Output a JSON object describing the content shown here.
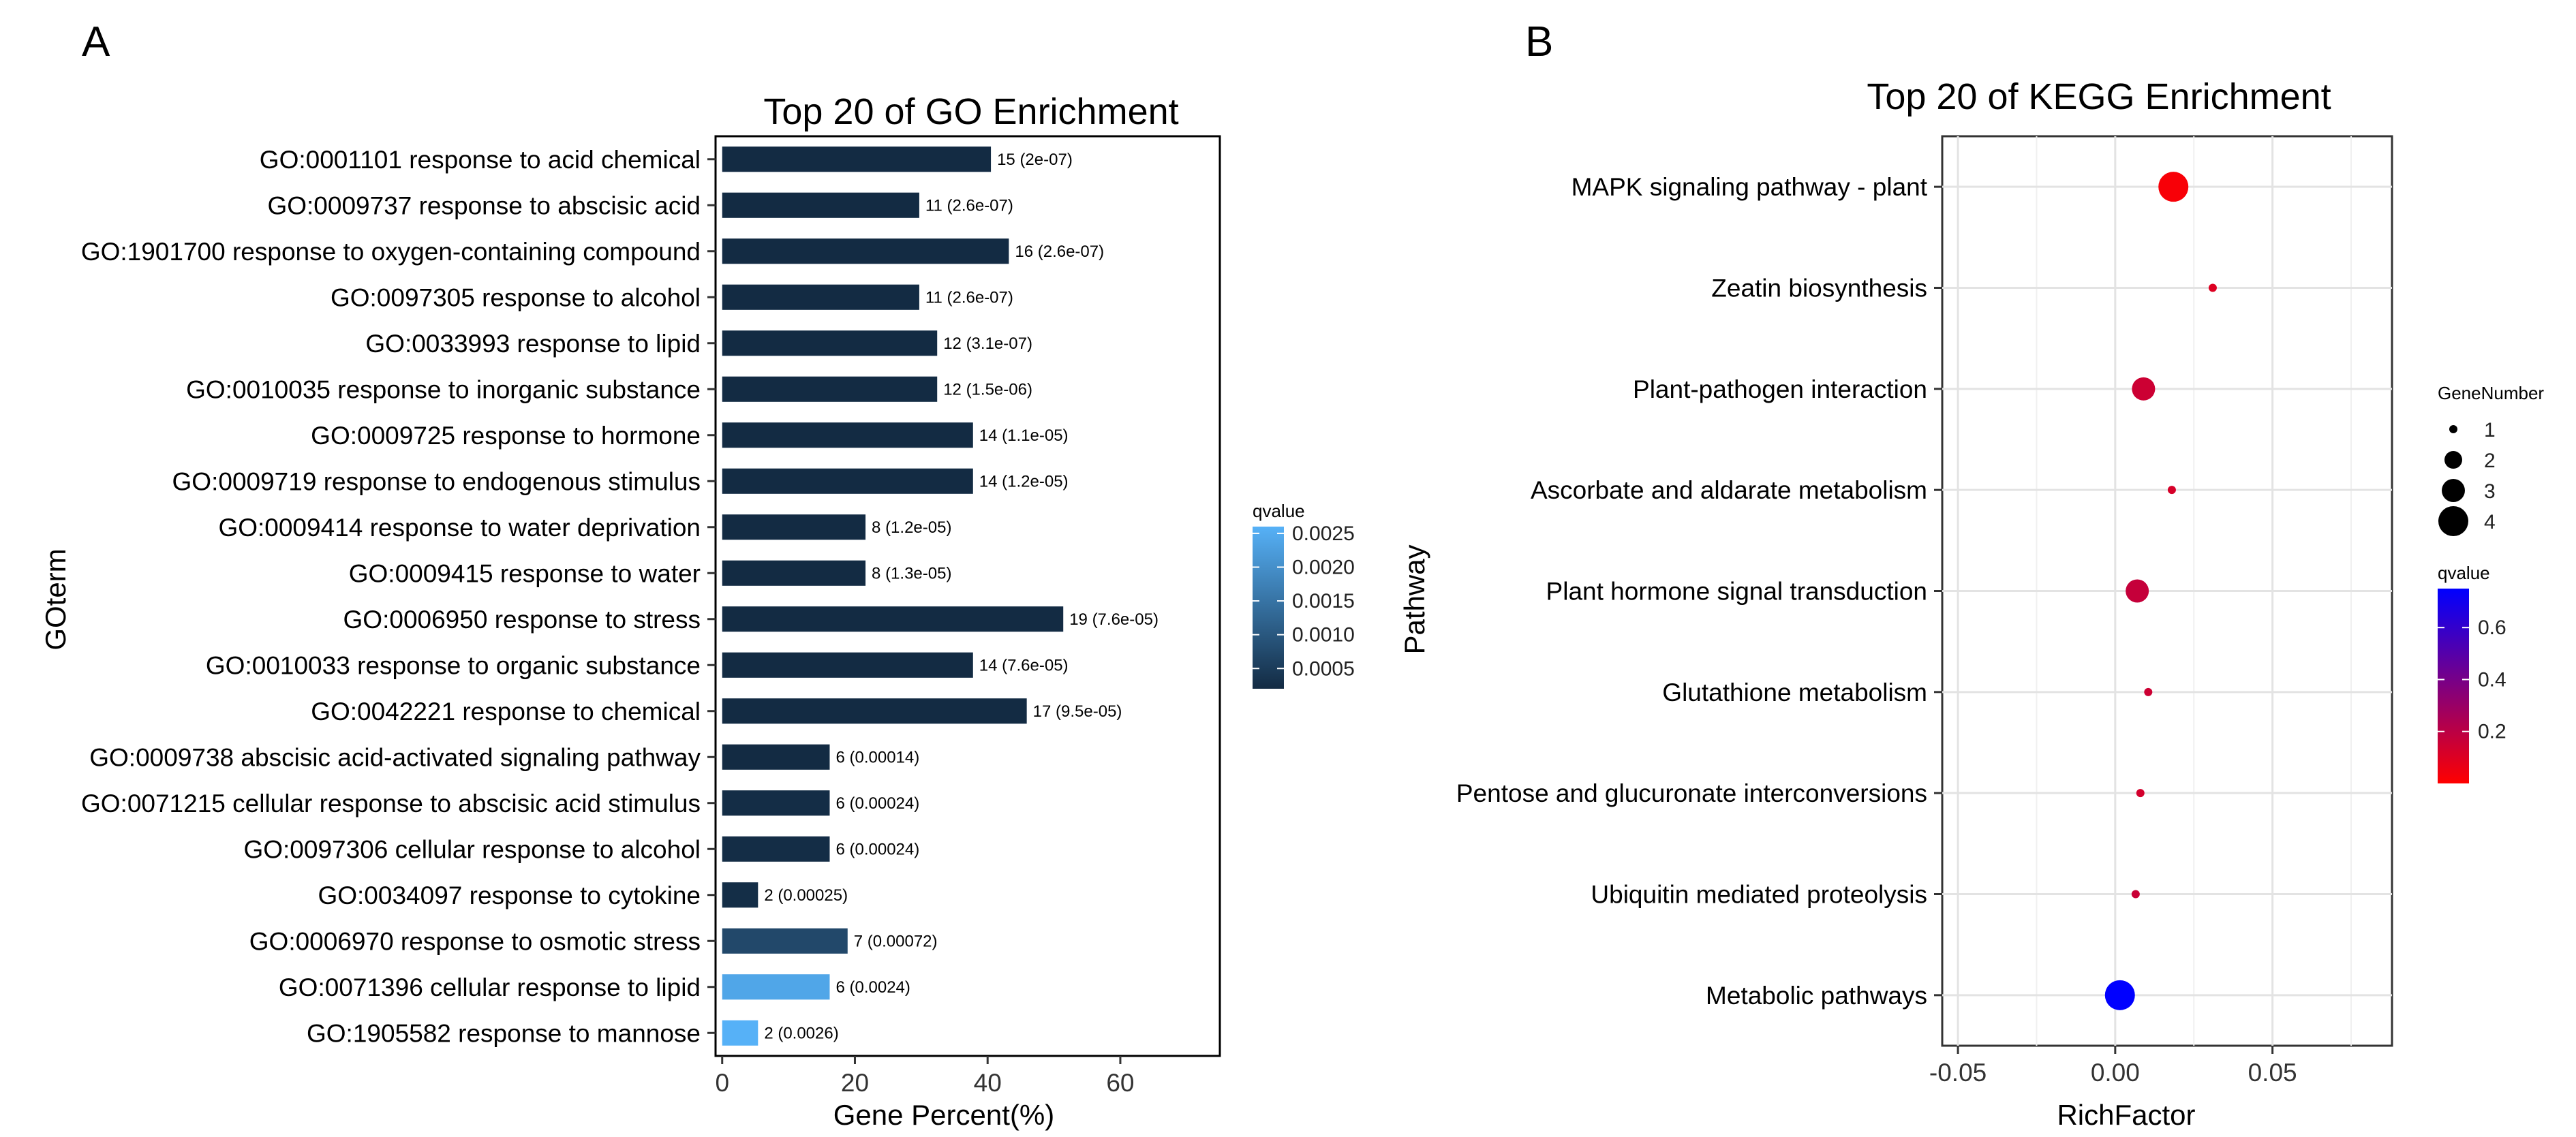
{
  "panel_labels": {
    "left": "A",
    "right": "B"
  },
  "colors": {
    "qvalue_low": "#132B43",
    "qvalue_high": "#56B1F7",
    "kegg_low": "#FF0000",
    "kegg_high": "#0000FF"
  },
  "chart_data": [
    {
      "type": "bar",
      "orientation": "horizontal",
      "title": "Top 20 of GO Enrichment",
      "xlabel": "Gene Percent(%)",
      "ylabel": "GOterm",
      "xlim": [
        -1,
        75
      ],
      "xticks": [
        0,
        20,
        40,
        60
      ],
      "xtick_labels": [
        "0",
        "20",
        "40",
        "60"
      ],
      "grid": false,
      "categories": [
        "GO:0001101 response to acid chemical",
        "GO:0009737 response to abscisic acid",
        "GO:1901700 response to oxygen-containing compound",
        "GO:0097305 response to alcohol",
        "GO:0033993 response to lipid",
        "GO:0010035 response to inorganic substance",
        "GO:0009725 response to hormone",
        "GO:0009719 response to endogenous stimulus",
        "GO:0009414 response to water deprivation",
        "GO:0009415 response to water",
        "GO:0006950 response to stress",
        "GO:0010033 response to organic substance",
        "GO:0042221 response to chemical",
        "GO:0009738 abscisic acid-activated signaling pathway",
        "GO:0071215 cellular response to abscisic acid stimulus",
        "GO:0097306 cellular response to alcohol",
        "GO:0034097 response to cytokine",
        "GO:0006970 response to osmotic stress",
        "GO:0071396 cellular response to lipid",
        "GO:1905582 response to mannose"
      ],
      "values": [
        40.5,
        29.7,
        43.2,
        29.7,
        32.4,
        32.4,
        37.8,
        37.8,
        21.6,
        21.6,
        51.4,
        37.8,
        45.9,
        16.2,
        16.2,
        16.2,
        5.4,
        18.9,
        16.2,
        5.4
      ],
      "qvalues": [
        2e-07,
        2.6e-07,
        2.6e-07,
        2.6e-07,
        3.1e-07,
        1.5e-06,
        1.1e-05,
        1.2e-05,
        1.2e-05,
        1.3e-05,
        7.6e-05,
        7.6e-05,
        9.5e-05,
        0.00014,
        0.00024,
        0.00024,
        0.00025,
        0.00072,
        0.0024,
        0.0026
      ],
      "bar_labels": [
        "15 (2e-07)",
        "11 (2.6e-07)",
        "16 (2.6e-07)",
        "11 (2.6e-07)",
        "12 (3.1e-07)",
        "12 (1.5e-06)",
        "14 (1.1e-05)",
        "14 (1.2e-05)",
        "8 (1.2e-05)",
        "8 (1.3e-05)",
        "19 (7.6e-05)",
        "14 (7.6e-05)",
        "17 (9.5e-05)",
        "6 (0.00014)",
        "6 (0.00024)",
        "6 (0.00024)",
        "2 (0.00025)",
        "7 (0.00072)",
        "6 (0.0024)",
        "2 (0.0026)"
      ],
      "legend": {
        "title": "qvalue",
        "range": [
          0.0002,
          0.0026
        ],
        "labels": [
          "0.0025",
          "0.0020",
          "0.0015",
          "0.0010",
          "0.0005"
        ],
        "label_values": [
          0.0025,
          0.002,
          0.0015,
          0.001,
          0.0005
        ],
        "position": "right"
      }
    },
    {
      "type": "scatter",
      "title": "Top 20 of KEGG Enrichment",
      "xlabel": "RichFactor",
      "ylabel": "Pathway",
      "xlim": [
        -0.055,
        0.088
      ],
      "xticks": [
        -0.05,
        0,
        0.05
      ],
      "xtick_labels": [
        "-0.05",
        "0.00",
        "0.05"
      ],
      "grid": true,
      "categories": [
        "MAPK signaling pathway - plant",
        "Zeatin biosynthesis",
        "Plant-pathogen interaction",
        "Ascorbate and aldarate metabolism",
        "Plant hormone signal transduction",
        "Glutathione metabolism",
        "Pentose and glucuronate interconversions",
        "Ubiquitin mediated proteolysis",
        "Metabolic pathways"
      ],
      "x": [
        0.0185,
        0.031,
        0.009,
        0.018,
        0.007,
        0.0105,
        0.008,
        0.0065,
        0.0015
      ],
      "gene_number": [
        4,
        1,
        3,
        1,
        3,
        1,
        1,
        1,
        4
      ],
      "qvalue": [
        0.02,
        0.1,
        0.15,
        0.12,
        0.17,
        0.15,
        0.13,
        0.16,
        0.75
      ],
      "size_legend": {
        "title": "GeneNumber",
        "labels": [
          "1",
          "2",
          "3",
          "4"
        ],
        "values": [
          1,
          2,
          3,
          4
        ],
        "position": "right"
      },
      "color_legend": {
        "title": "qvalue",
        "labels": [
          "0.6",
          "0.4",
          "0.2"
        ],
        "values": [
          0.6,
          0.4,
          0.2
        ],
        "range": [
          0.0,
          0.75
        ],
        "position": "right"
      }
    }
  ]
}
